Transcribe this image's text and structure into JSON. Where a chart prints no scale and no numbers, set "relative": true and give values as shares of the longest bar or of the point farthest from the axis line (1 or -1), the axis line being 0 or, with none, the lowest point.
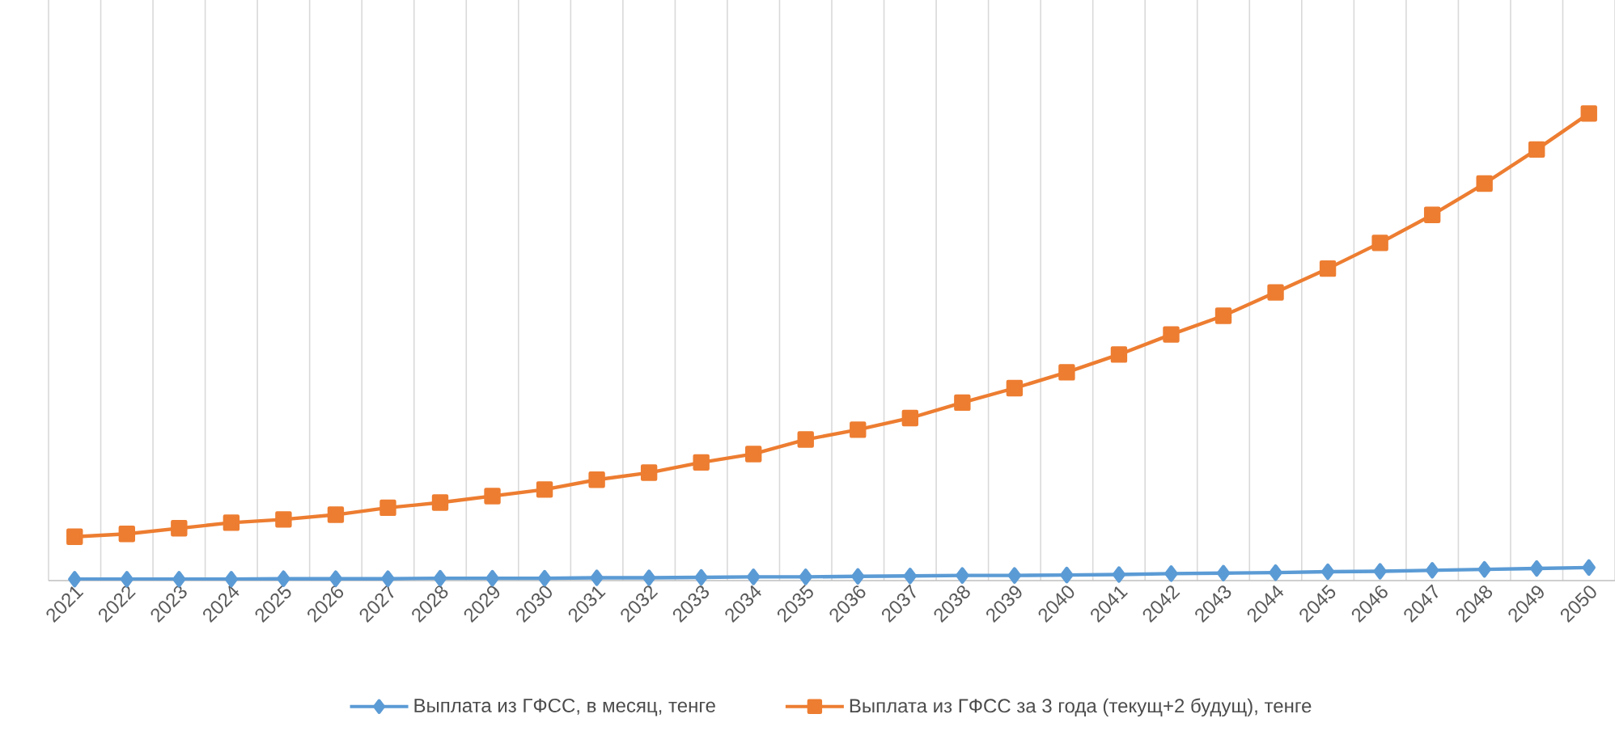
{
  "chart_data": {
    "type": "line",
    "relative": true,
    "grid": "x",
    "legend": "bottom",
    "categories": [
      "2021",
      "2022",
      "2023",
      "2024",
      "2025",
      "2026",
      "2027",
      "2028",
      "2029",
      "2030",
      "2031",
      "2032",
      "2033",
      "2034",
      "2035",
      "2036",
      "2037",
      "2038",
      "2039",
      "2040",
      "2041",
      "2042",
      "2043",
      "2044",
      "2045",
      "2046",
      "2047",
      "2048",
      "2049",
      "2050"
    ],
    "series": [
      {
        "name": "Выплата из ГФСС,  в месяц, тенге",
        "color": "#5b9bd5",
        "marker": "diamond",
        "values": [
          0.003,
          0.003,
          0.003,
          0.003,
          0.004,
          0.004,
          0.004,
          0.005,
          0.005,
          0.005,
          0.006,
          0.006,
          0.007,
          0.008,
          0.008,
          0.009,
          0.01,
          0.011,
          0.011,
          0.012,
          0.013,
          0.015,
          0.016,
          0.017,
          0.019,
          0.02,
          0.022,
          0.024,
          0.026,
          0.028
        ]
      },
      {
        "name": "Выплата из ГФСС за 3 года (текущ+2 будущ), тенге",
        "color": "#ed7d31",
        "marker": "square",
        "values": [
          0.094,
          0.1,
          0.112,
          0.124,
          0.131,
          0.141,
          0.156,
          0.167,
          0.181,
          0.195,
          0.216,
          0.231,
          0.253,
          0.271,
          0.302,
          0.323,
          0.348,
          0.381,
          0.412,
          0.446,
          0.484,
          0.527,
          0.567,
          0.617,
          0.668,
          0.723,
          0.783,
          0.85,
          0.923,
          1
        ]
      }
    ]
  }
}
